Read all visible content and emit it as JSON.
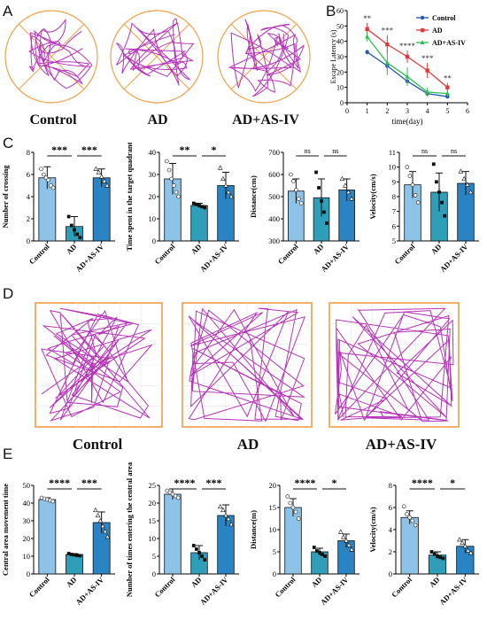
{
  "panels": {
    "A": {
      "letter": "A",
      "labels": [
        "Control",
        "AD",
        "AD+AS-IV"
      ]
    },
    "B": {
      "letter": "B"
    },
    "C": {
      "letter": "C"
    },
    "D": {
      "letter": "D",
      "labels": [
        "Control",
        "AD",
        "AD+AS-IV"
      ]
    },
    "E": {
      "letter": "E"
    }
  },
  "colors": {
    "bar_light": "#8ec3e8",
    "bar_mid": "#2f9fb9",
    "bar_dark": "#2a83c2",
    "line_control": "#2457b0",
    "line_ad": "#e23a3a",
    "line_asiv": "#2ebd4f",
    "track": "#b534b8",
    "pool": "#f0a14a",
    "box": "#f4b06a"
  },
  "chart_data": [
    {
      "id": "B",
      "type": "line",
      "xlabel": "time(day)",
      "ylabel": "Escape Latency (s)",
      "xlim": [
        0,
        6
      ],
      "ylim": [
        0,
        60
      ],
      "xticks": [
        "0",
        "1",
        "2",
        "3",
        "4",
        "5",
        "6"
      ],
      "yticks": [
        "0",
        "10",
        "20",
        "30",
        "40",
        "50",
        "60"
      ],
      "x": [
        1,
        2,
        3,
        4,
        5
      ],
      "series": [
        {
          "name": "Control",
          "values": [
            33,
            24,
            14,
            6,
            4
          ],
          "err": [
            1.5,
            3,
            2,
            1.5,
            1
          ]
        },
        {
          "name": "AD",
          "values": [
            48,
            38,
            30,
            21,
            10
          ],
          "err": [
            4,
            6,
            4,
            5,
            3
          ]
        },
        {
          "name": "AD+AS-IV",
          "values": [
            43,
            26,
            17,
            7,
            6
          ],
          "err": [
            3,
            8,
            6,
            3,
            2
          ]
        }
      ],
      "significance": [
        "**",
        "***",
        "****",
        "***",
        "**"
      ],
      "legend": "top-right"
    },
    {
      "id": "C1",
      "type": "bar",
      "categories": [
        "Control",
        "AD",
        "AD+AS-IV"
      ],
      "values": [
        5.7,
        1.3,
        5.7
      ],
      "err": [
        1.0,
        0.9,
        0.8
      ],
      "ylabel": "Number of crossing",
      "ylim": [
        0,
        8
      ],
      "yticks": [
        "0",
        "2",
        "4",
        "6",
        "8"
      ],
      "points": [
        [
          6.5,
          6.0,
          5.7,
          5.5,
          5.0,
          4.8
        ],
        [
          2.2,
          1.4,
          1.0,
          0.6,
          0.3
        ],
        [
          6.5,
          6.2,
          5.8,
          5.4,
          5.0
        ]
      ],
      "markers": [
        "circle",
        "square",
        "triangle"
      ],
      "significance": [
        [
          "***",
          0,
          1
        ],
        [
          "***",
          1,
          2
        ]
      ]
    },
    {
      "id": "C2",
      "type": "bar",
      "categories": [
        "Control",
        "AD",
        "AD+AS-IV"
      ],
      "values": [
        28,
        16,
        25
      ],
      "err": [
        7,
        1,
        6
      ],
      "ylabel": "Time spent in the target quadrant",
      "ylim": [
        0,
        40
      ],
      "yticks": [
        "0",
        "10",
        "20",
        "30",
        "40"
      ],
      "points": [
        [
          36,
          32,
          28,
          25,
          22,
          20
        ],
        [
          17,
          16.5,
          16,
          15.5,
          15
        ],
        [
          33,
          28,
          25,
          22,
          20
        ]
      ],
      "markers": [
        "circle",
        "square",
        "triangle"
      ],
      "significance": [
        [
          "**",
          0,
          1
        ],
        [
          "*",
          1,
          2
        ]
      ]
    },
    {
      "id": "C3",
      "type": "bar",
      "categories": [
        "Control",
        "AD",
        "AD+AS-IV"
      ],
      "values": [
        525,
        495,
        530
      ],
      "err": [
        55,
        85,
        50
      ],
      "ylabel": "Distance(cm)",
      "ylim": [
        300,
        700
      ],
      "yticks": [
        "300",
        "400",
        "500",
        "600",
        "700"
      ],
      "points": [
        [
          600,
          570,
          530,
          490,
          470
        ],
        [
          610,
          540,
          480,
          430,
          380
        ],
        [
          580,
          550,
          520,
          490
        ]
      ],
      "markers": [
        "circle",
        "square",
        "triangle"
      ],
      "significance": [
        [
          "ns",
          0,
          1
        ],
        [
          "ns",
          1,
          2
        ]
      ]
    },
    {
      "id": "C4",
      "type": "bar",
      "categories": [
        "Control",
        "AD",
        "AD+AS-IV"
      ],
      "values": [
        8.8,
        8.3,
        8.9
      ],
      "err": [
        0.9,
        1.3,
        0.8
      ],
      "ylabel": "Velocity(cm/s)",
      "ylim": [
        5,
        11
      ],
      "yticks": [
        "5",
        "6",
        "7",
        "8",
        "9",
        "10",
        "11"
      ],
      "points": [
        [
          10.0,
          9.4,
          8.8,
          8.1,
          7.6
        ],
        [
          10.2,
          9.0,
          8.3,
          7.6,
          6.7
        ],
        [
          9.7,
          9.2,
          8.8,
          8.3
        ]
      ],
      "markers": [
        "circle",
        "square",
        "triangle"
      ],
      "significance": [
        [
          "ns",
          0,
          1
        ],
        [
          "ns",
          1,
          2
        ]
      ]
    },
    {
      "id": "E1",
      "type": "bar",
      "categories": [
        "Control",
        "AD",
        "AD+AS-IV"
      ],
      "values": [
        42,
        11,
        29
      ],
      "err": [
        1,
        0.5,
        6
      ],
      "ylabel": "Central area movement time",
      "ylim": [
        0,
        50
      ],
      "yticks": [
        "0",
        "10",
        "20",
        "30",
        "40",
        "50"
      ],
      "points": [
        [
          43,
          42.5,
          42,
          41.5,
          41
        ],
        [
          11.5,
          11,
          10.8,
          10.5,
          10.3
        ],
        [
          36,
          33,
          30,
          27,
          24,
          21
        ]
      ],
      "markers": [
        "circle",
        "square",
        "triangle"
      ],
      "significance": [
        [
          "****",
          0,
          1
        ],
        [
          "***",
          1,
          2
        ]
      ]
    },
    {
      "id": "E2",
      "type": "bar",
      "categories": [
        "Control",
        "AD",
        "AD+AS-IV"
      ],
      "values": [
        22.5,
        6,
        16.5
      ],
      "err": [
        1.5,
        2,
        3
      ],
      "ylabel": "Number of times entering the central area",
      "ylim": [
        0,
        25
      ],
      "yticks": [
        "0",
        "5",
        "10",
        "15",
        "20",
        "25"
      ],
      "points": [
        [
          23.5,
          23,
          22.5,
          22,
          21.5
        ],
        [
          8,
          7,
          6,
          5,
          4
        ],
        [
          19,
          18,
          16.5,
          15.5,
          14
        ]
      ],
      "markers": [
        "circle",
        "square",
        "triangle"
      ],
      "significance": [
        [
          "****",
          0,
          1
        ],
        [
          "***",
          1,
          2
        ]
      ]
    },
    {
      "id": "E3",
      "type": "bar",
      "categories": [
        "Control",
        "AD",
        "AD+AS-IV"
      ],
      "values": [
        15,
        5,
        7.5
      ],
      "err": [
        2,
        0.8,
        1.5
      ],
      "ylabel": "Distance(m)",
      "ylim": [
        0,
        20
      ],
      "yticks": [
        "0",
        "5",
        "10",
        "15",
        "20"
      ],
      "points": [
        [
          17.5,
          16,
          15,
          14,
          12.5
        ],
        [
          6,
          5.2,
          4.8,
          4.4,
          4
        ],
        [
          9.5,
          8.3,
          7.5,
          6.5,
          5.5
        ]
      ],
      "markers": [
        "circle",
        "square",
        "triangle"
      ],
      "significance": [
        [
          "****",
          0,
          1
        ],
        [
          "*",
          1,
          2
        ]
      ]
    },
    {
      "id": "E4",
      "type": "bar",
      "categories": [
        "Control",
        "AD",
        "AD+AS-IV"
      ],
      "values": [
        5.1,
        1.7,
        2.5
      ],
      "err": [
        0.6,
        0.3,
        0.6
      ],
      "ylabel": "Velocity(cm/s)",
      "ylim": [
        0,
        8
      ],
      "yticks": [
        "0",
        "2",
        "4",
        "6",
        "8"
      ],
      "points": [
        [
          6.1,
          5.4,
          5.1,
          4.8,
          4.4
        ],
        [
          2.0,
          1.8,
          1.6,
          1.5,
          1.4
        ],
        [
          3.1,
          2.8,
          2.5,
          2.1,
          1.9
        ]
      ],
      "markers": [
        "circle",
        "square",
        "triangle"
      ],
      "significance": [
        [
          "****",
          0,
          1
        ],
        [
          "*",
          1,
          2
        ]
      ]
    }
  ]
}
